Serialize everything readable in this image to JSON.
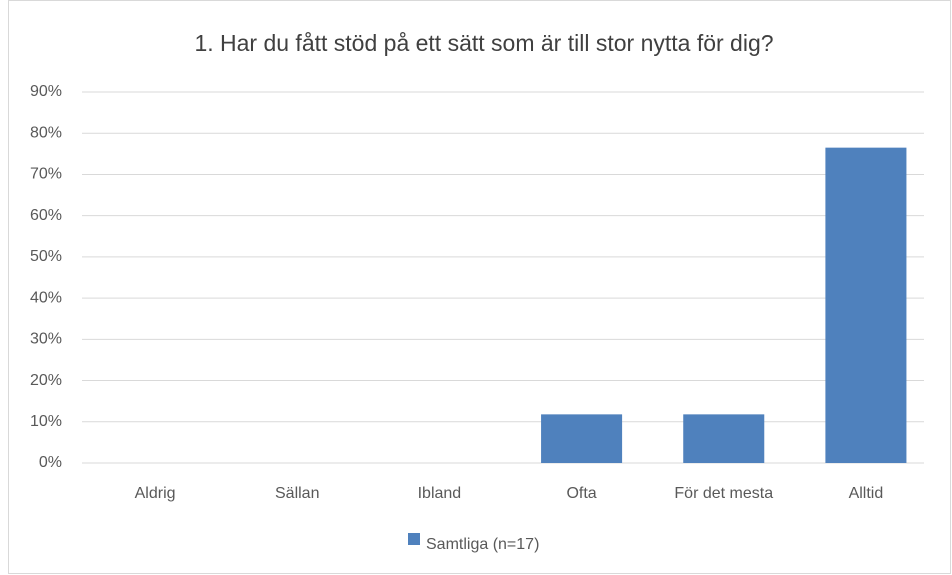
{
  "chart_data": {
    "type": "bar",
    "title": "1. Har du fått stöd på ett sätt som är till stor nytta för dig?",
    "categories": [
      "Aldrig",
      "Sällan",
      "Ibland",
      "Ofta",
      "För det mesta",
      "Alltid"
    ],
    "series": [
      {
        "name": "Samtliga (n=17)",
        "color": "#4f81bd",
        "values": [
          0,
          0,
          0,
          11.8,
          11.8,
          76.5
        ]
      }
    ],
    "ylim": [
      0,
      90
    ],
    "yticks": [
      {
        "value": 0,
        "label": "0%"
      },
      {
        "value": 10,
        "label": "10%"
      },
      {
        "value": 20,
        "label": "20%"
      },
      {
        "value": 30,
        "label": "30%"
      },
      {
        "value": 40,
        "label": "40%"
      },
      {
        "value": 50,
        "label": "50%"
      },
      {
        "value": 60,
        "label": "60%"
      },
      {
        "value": 70,
        "label": "70%"
      },
      {
        "value": 80,
        "label": "80%"
      },
      {
        "value": 90,
        "label": "90%"
      }
    ],
    "grid": true,
    "legend": "bottom"
  }
}
